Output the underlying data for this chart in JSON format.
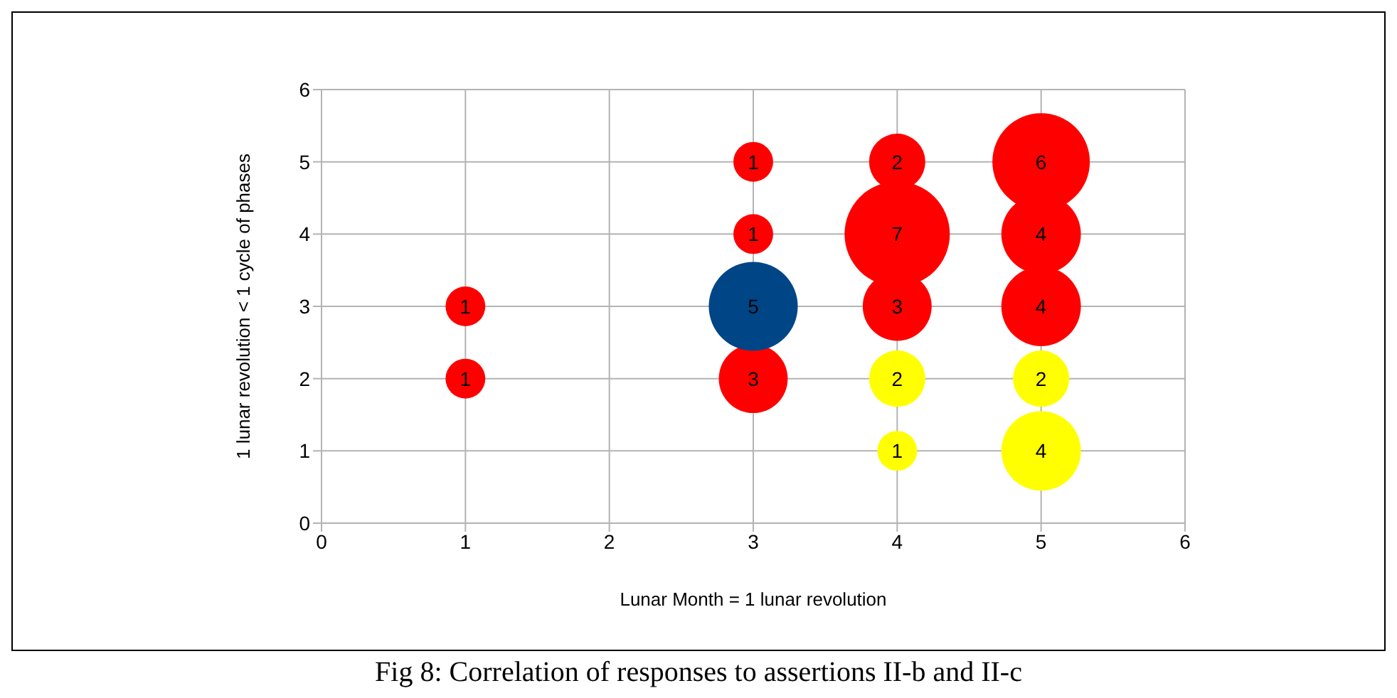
{
  "chart_data": {
    "type": "bubble",
    "title": "Fig 8: Correlation of responses to assertions II-b and II-c",
    "xlabel": "Lunar Month = 1 lunar revolution",
    "ylabel": "1 lunar revolution < 1 cycle of phases",
    "xlim": [
      0,
      6
    ],
    "xticks": [
      0,
      1,
      2,
      3,
      4,
      5,
      6
    ],
    "ylim": [
      0,
      6
    ],
    "yticks": [
      0,
      1,
      2,
      3,
      4,
      5,
      6
    ],
    "grid": true,
    "series": [
      {
        "color": "#ff0000",
        "x": [
          1,
          1,
          3,
          3,
          3,
          4,
          4,
          4,
          5,
          5,
          5
        ],
        "values": [
          3,
          2,
          5,
          4,
          2,
          5,
          4,
          3,
          5,
          4,
          3
        ],
        "sizes": [
          1,
          1,
          1,
          1,
          3,
          2,
          7,
          3,
          6,
          4,
          4
        ],
        "value_labels": [
          "1",
          "1",
          "1",
          "1",
          "3",
          "2",
          "7",
          "3",
          "6",
          "4",
          "4"
        ]
      },
      {
        "color": "#004586",
        "x": [
          3
        ],
        "values": [
          3
        ],
        "sizes": [
          5
        ],
        "value_labels": [
          "5"
        ]
      },
      {
        "color": "#ffff00",
        "x": [
          4,
          4,
          5,
          5
        ],
        "values": [
          2,
          1,
          2,
          1
        ],
        "sizes": [
          2,
          1,
          2,
          4
        ],
        "value_labels": [
          "2",
          "1",
          "2",
          "4"
        ]
      }
    ]
  }
}
